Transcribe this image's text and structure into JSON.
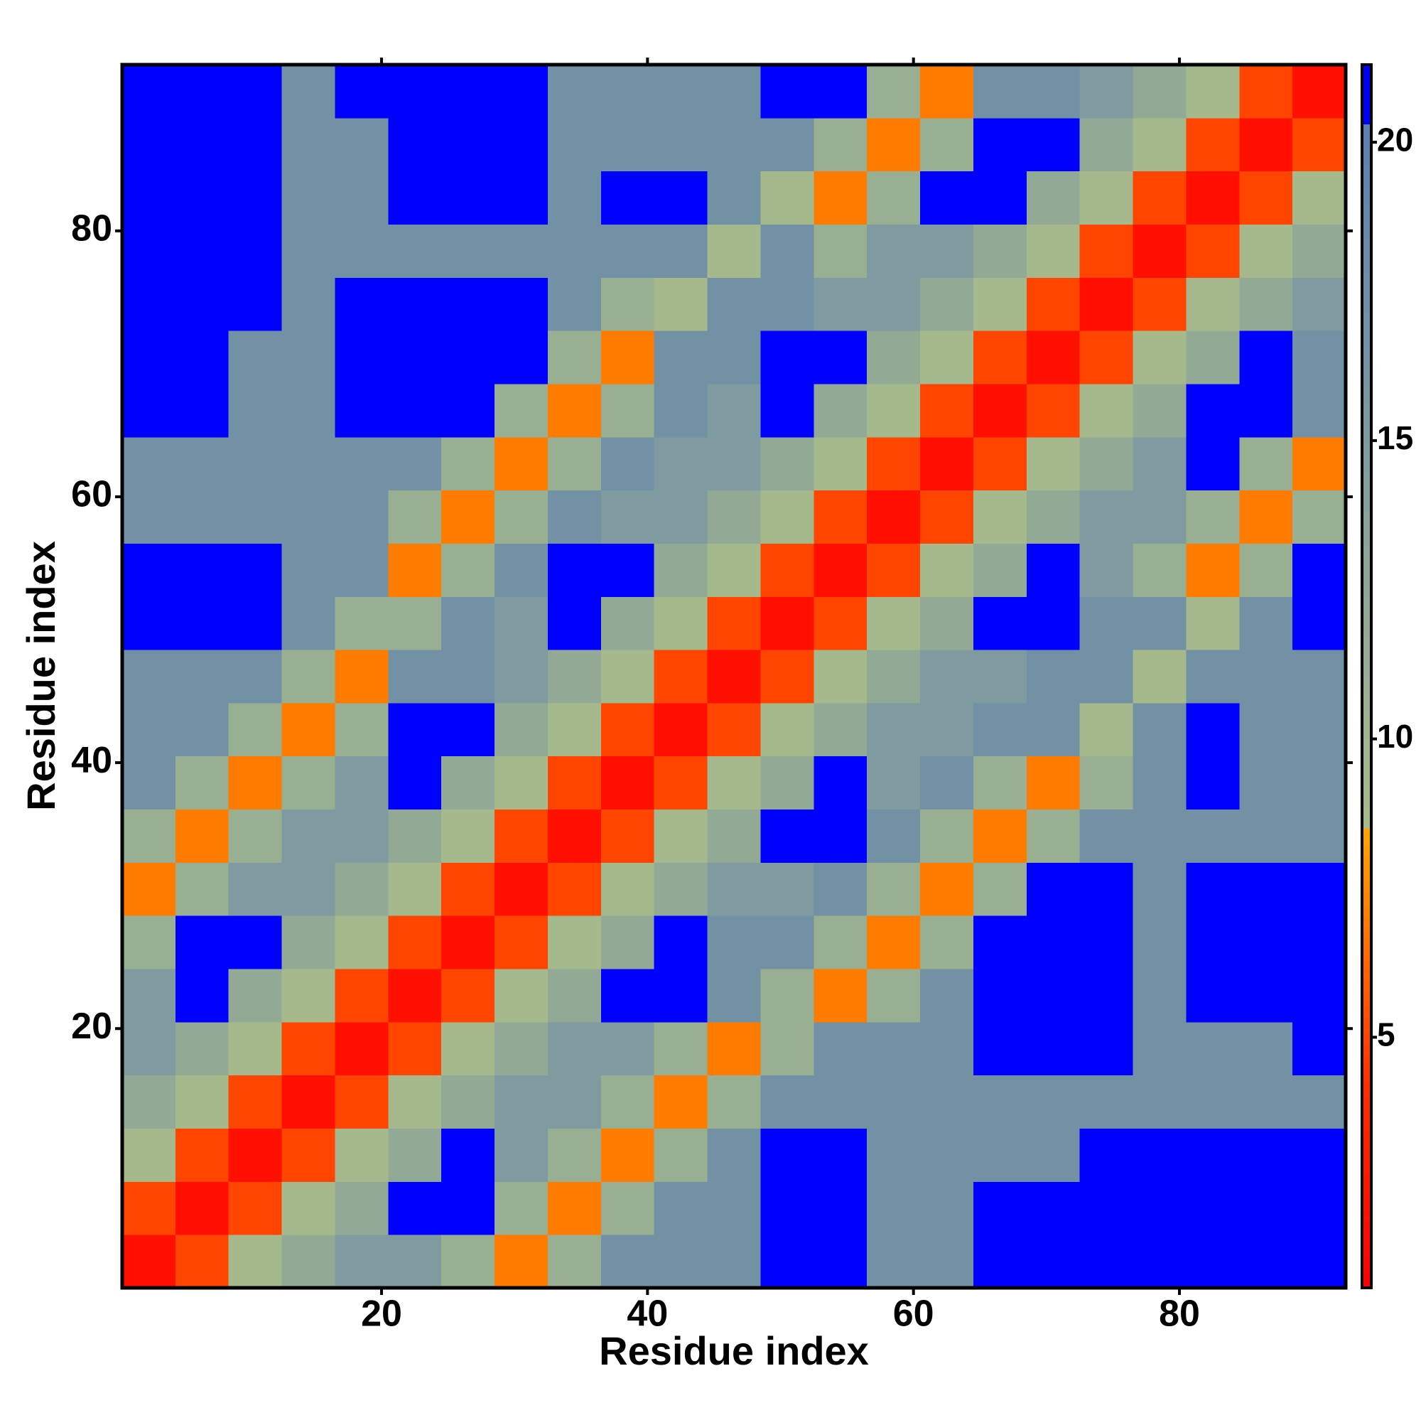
{
  "chart_data": {
    "type": "heatmap",
    "xlabel": "Residue index",
    "ylabel": "Residue index",
    "xlim": [
      0.5,
      92.5
    ],
    "ylim": [
      0.5,
      92.5
    ],
    "xticks": [
      20,
      40,
      60,
      80
    ],
    "yticks": [
      20,
      40,
      60,
      80
    ],
    "x": [
      2.5,
      6.5,
      10.5,
      14.5,
      18.5,
      22.5,
      26.5,
      30.5,
      34.5,
      38.5,
      42.5,
      46.5,
      50.5,
      54.5,
      58.5,
      62.5,
      66.5,
      70.5,
      74.5,
      78.5,
      82.5,
      86.5,
      90.5
    ],
    "y": [
      2.5,
      6.5,
      10.5,
      14.5,
      18.5,
      22.5,
      26.5,
      30.5,
      34.5,
      38.5,
      42.5,
      46.5,
      50.5,
      54.5,
      58.5,
      62.5,
      66.5,
      70.5,
      74.5,
      78.5,
      82.5,
      86.5,
      90.5
    ],
    "z": [
      [
        2,
        5,
        9,
        12,
        15,
        15,
        11,
        7,
        11,
        17,
        17,
        17,
        21,
        21,
        17,
        17,
        21,
        21,
        21,
        21,
        21,
        21,
        21
      ],
      [
        5,
        2,
        5,
        9,
        12,
        21,
        21,
        11,
        7,
        11,
        17,
        17,
        21,
        21,
        17,
        17,
        21,
        21,
        21,
        21,
        21,
        21,
        21
      ],
      [
        9,
        5,
        2,
        5,
        9,
        12,
        21,
        15,
        11,
        7,
        11,
        17,
        21,
        21,
        17,
        17,
        17,
        17,
        21,
        21,
        21,
        21,
        21
      ],
      [
        12,
        9,
        5,
        2,
        5,
        9,
        12,
        15,
        15,
        11,
        7,
        11,
        17,
        17,
        17,
        17,
        17,
        17,
        17,
        17,
        17,
        17,
        17
      ],
      [
        15,
        12,
        9,
        5,
        2,
        5,
        9,
        12,
        15,
        15,
        11,
        7,
        11,
        17,
        17,
        17,
        21,
        21,
        21,
        17,
        17,
        17,
        21
      ],
      [
        15,
        21,
        12,
        9,
        5,
        2,
        5,
        9,
        12,
        21,
        21,
        17,
        11,
        7,
        11,
        17,
        21,
        21,
        21,
        17,
        21,
        21,
        21
      ],
      [
        11,
        21,
        21,
        12,
        9,
        5,
        2,
        5,
        9,
        12,
        21,
        17,
        17,
        11,
        7,
        11,
        21,
        21,
        21,
        17,
        21,
        21,
        21
      ],
      [
        7,
        11,
        15,
        15,
        12,
        9,
        5,
        2,
        5,
        9,
        12,
        15,
        15,
        17,
        11,
        7,
        11,
        21,
        21,
        17,
        21,
        21,
        21
      ],
      [
        11,
        7,
        11,
        15,
        15,
        12,
        9,
        5,
        2,
        5,
        9,
        12,
        21,
        21,
        17,
        11,
        7,
        11,
        17,
        17,
        17,
        17,
        17
      ],
      [
        17,
        11,
        7,
        11,
        15,
        21,
        12,
        9,
        5,
        2,
        5,
        9,
        12,
        21,
        15,
        17,
        11,
        7,
        11,
        17,
        21,
        17,
        17
      ],
      [
        17,
        17,
        11,
        7,
        11,
        21,
        21,
        12,
        9,
        5,
        2,
        5,
        9,
        12,
        15,
        15,
        17,
        17,
        9,
        17,
        21,
        17,
        17
      ],
      [
        17,
        17,
        17,
        11,
        7,
        17,
        17,
        15,
        12,
        9,
        5,
        2,
        5,
        9,
        12,
        15,
        15,
        17,
        17,
        9,
        17,
        17,
        17
      ],
      [
        21,
        21,
        21,
        17,
        11,
        11,
        17,
        15,
        21,
        12,
        9,
        5,
        2,
        5,
        9,
        12,
        21,
        21,
        17,
        17,
        9,
        17,
        21
      ],
      [
        21,
        21,
        21,
        17,
        17,
        7,
        11,
        17,
        21,
        21,
        12,
        9,
        5,
        2,
        5,
        9,
        12,
        21,
        15,
        11,
        7,
        11,
        21
      ],
      [
        17,
        17,
        17,
        17,
        17,
        11,
        7,
        11,
        17,
        15,
        15,
        12,
        9,
        5,
        2,
        5,
        9,
        12,
        15,
        15,
        11,
        7,
        11
      ],
      [
        17,
        17,
        17,
        17,
        17,
        17,
        11,
        7,
        11,
        17,
        15,
        15,
        12,
        9,
        5,
        2,
        5,
        9,
        12,
        15,
        21,
        11,
        7
      ],
      [
        21,
        21,
        17,
        17,
        21,
        21,
        21,
        11,
        7,
        11,
        17,
        15,
        21,
        12,
        9,
        5,
        2,
        5,
        9,
        12,
        21,
        21,
        17
      ],
      [
        21,
        21,
        17,
        17,
        21,
        21,
        21,
        21,
        11,
        7,
        17,
        17,
        21,
        21,
        12,
        9,
        5,
        2,
        5,
        9,
        12,
        21,
        17
      ],
      [
        21,
        21,
        21,
        17,
        21,
        21,
        21,
        21,
        17,
        11,
        9,
        17,
        17,
        15,
        15,
        12,
        9,
        5,
        2,
        5,
        9,
        12,
        15
      ],
      [
        21,
        21,
        21,
        17,
        17,
        17,
        17,
        17,
        17,
        17,
        17,
        9,
        17,
        11,
        15,
        15,
        12,
        9,
        5,
        2,
        5,
        9,
        12
      ],
      [
        21,
        21,
        21,
        17,
        17,
        21,
        21,
        21,
        17,
        21,
        21,
        17,
        9,
        7,
        11,
        21,
        21,
        12,
        9,
        5,
        2,
        5,
        9
      ],
      [
        21,
        21,
        21,
        17,
        17,
        21,
        21,
        21,
        17,
        17,
        17,
        17,
        17,
        11,
        7,
        11,
        21,
        21,
        12,
        9,
        5,
        2,
        5
      ],
      [
        21,
        21,
        21,
        17,
        21,
        21,
        21,
        21,
        17,
        17,
        17,
        17,
        21,
        21,
        11,
        7,
        17,
        17,
        15,
        12,
        9,
        5,
        2
      ]
    ],
    "colorscale": [
      [
        0.8,
        "#ff0000"
      ],
      [
        4,
        "#ff2a00"
      ],
      [
        8.5,
        "#ffa500"
      ],
      [
        8.5,
        "#a9bb8a"
      ],
      [
        20.3,
        "#5c80b0"
      ],
      [
        20.3,
        "#0000ff"
      ],
      [
        21.3,
        "#0000ff"
      ]
    ],
    "colorbar": {
      "lim": [
        0.8,
        21.3
      ],
      "ticks": [
        5,
        10,
        15,
        20
      ]
    }
  }
}
